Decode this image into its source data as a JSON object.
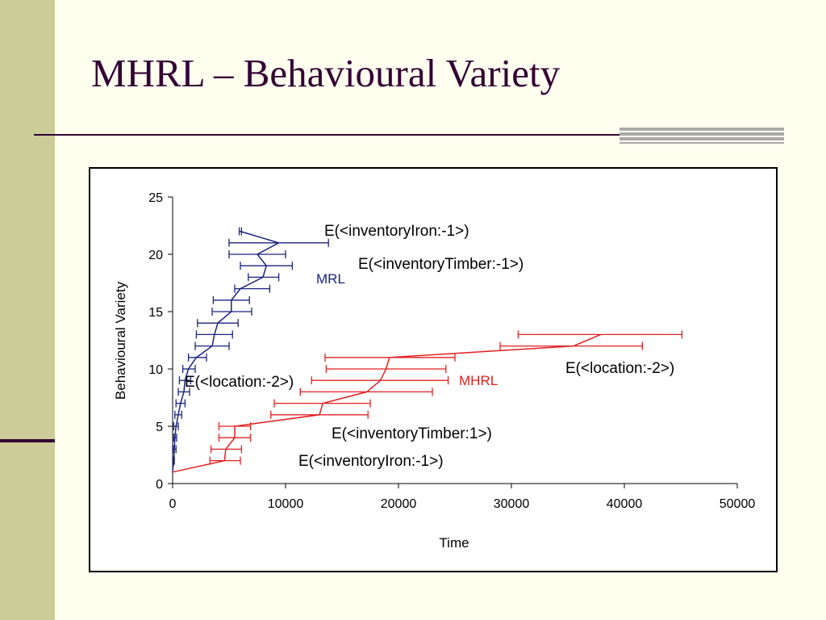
{
  "slide": {
    "title": "MHRL – Behavioural Variety"
  },
  "colors": {
    "background": "#fffff0",
    "sidebar": "#cccc99",
    "accent_dark": "#330033",
    "mrl_series": "#1a237e",
    "mhrl_series": "#e02020"
  },
  "chart_data": {
    "type": "line",
    "xlabel": "Time",
    "ylabel": "Behavioural Variety",
    "xlim": [
      0,
      50000
    ],
    "ylim": [
      0,
      25
    ],
    "x_ticks": [
      "0",
      "10000",
      "20000",
      "30000",
      "40000",
      "50000"
    ],
    "y_ticks": [
      "0",
      "5",
      "10",
      "15",
      "20",
      "25"
    ],
    "grid": false,
    "series": [
      {
        "name": "MRL",
        "color": "#1a237e",
        "points": [
          {
            "y": 1,
            "x": 0,
            "xmin": 0,
            "xmax": 0
          },
          {
            "y": 2,
            "x": 100,
            "xmin": 50,
            "xmax": 150
          },
          {
            "y": 3,
            "x": 150,
            "xmin": 50,
            "xmax": 300
          },
          {
            "y": 4,
            "x": 200,
            "xmin": 100,
            "xmax": 350
          },
          {
            "y": 5,
            "x": 300,
            "xmin": 100,
            "xmax": 500
          },
          {
            "y": 6,
            "x": 500,
            "xmin": 200,
            "xmax": 800
          },
          {
            "y": 7,
            "x": 700,
            "xmin": 300,
            "xmax": 1100
          },
          {
            "y": 8,
            "x": 1000,
            "xmin": 500,
            "xmax": 1500
          },
          {
            "y": 9,
            "x": 1100,
            "xmin": 600,
            "xmax": 1600
          },
          {
            "y": 10,
            "x": 1400,
            "xmin": 900,
            "xmax": 2000
          },
          {
            "y": 11,
            "x": 2100,
            "xmin": 1400,
            "xmax": 3000
          },
          {
            "y": 12,
            "x": 3500,
            "xmin": 2000,
            "xmax": 5000
          },
          {
            "y": 13,
            "x": 3700,
            "xmin": 2100,
            "xmax": 5300
          },
          {
            "y": 14,
            "x": 4000,
            "xmin": 2200,
            "xmax": 5800
          },
          {
            "y": 15,
            "x": 5200,
            "xmin": 3500,
            "xmax": 7000
          },
          {
            "y": 16,
            "x": 5200,
            "xmin": 3600,
            "xmax": 6800
          },
          {
            "y": 17,
            "x": 6000,
            "xmin": 5500,
            "xmax": 8600
          },
          {
            "y": 18,
            "x": 8000,
            "xmin": 6700,
            "xmax": 9400
          },
          {
            "y": 19,
            "x": 8300,
            "xmin": 6000,
            "xmax": 10600
          },
          {
            "y": 20,
            "x": 7500,
            "xmin": 5000,
            "xmax": 10000
          },
          {
            "y": 21,
            "x": 9400,
            "xmin": 5000,
            "xmax": 13800
          },
          {
            "y": 22,
            "x": 6000,
            "xmin": 5900,
            "xmax": 6100
          }
        ]
      },
      {
        "name": "MHRL",
        "color": "#e02020",
        "points": [
          {
            "y": 1,
            "x": 0,
            "xmin": 0,
            "xmax": 0
          },
          {
            "y": 2,
            "x": 4600,
            "xmin": 3300,
            "xmax": 6000
          },
          {
            "y": 3,
            "x": 4700,
            "xmin": 3400,
            "xmax": 6100
          },
          {
            "y": 4,
            "x": 5500,
            "xmin": 4100,
            "xmax": 6900
          },
          {
            "y": 5,
            "x": 5500,
            "xmin": 4100,
            "xmax": 6900
          },
          {
            "y": 6,
            "x": 13000,
            "xmin": 8700,
            "xmax": 17300
          },
          {
            "y": 7,
            "x": 13300,
            "xmin": 9000,
            "xmax": 17500
          },
          {
            "y": 8,
            "x": 17200,
            "xmin": 11300,
            "xmax": 23000
          },
          {
            "y": 9,
            "x": 18400,
            "xmin": 12300,
            "xmax": 24400
          },
          {
            "y": 10,
            "x": 18900,
            "xmin": 13600,
            "xmax": 24200
          },
          {
            "y": 11,
            "x": 19200,
            "xmin": 13500,
            "xmax": 25000
          },
          {
            "y": 12,
            "x": 35500,
            "xmin": 29000,
            "xmax": 41600
          },
          {
            "y": 13,
            "x": 37900,
            "xmin": 30600,
            "xmax": 45100
          }
        ]
      }
    ],
    "annotations": [
      {
        "text": "E(<inventoryIron:-1>)",
        "series": "MRL"
      },
      {
        "text": "E(<inventoryTimber:-1>)",
        "series": "MRL"
      },
      {
        "text": "MRL",
        "series": "MRL"
      },
      {
        "text": "E(<location:-2>)",
        "series": "MRL"
      },
      {
        "text": "E(<location:-2>)",
        "series": "MHRL"
      },
      {
        "text": "MHRL",
        "series": "MHRL"
      },
      {
        "text": "E(<inventoryTimber:1>)",
        "series": "MHRL"
      },
      {
        "text": "E(<inventoryIron:-1>)",
        "series": "MHRL"
      }
    ]
  }
}
